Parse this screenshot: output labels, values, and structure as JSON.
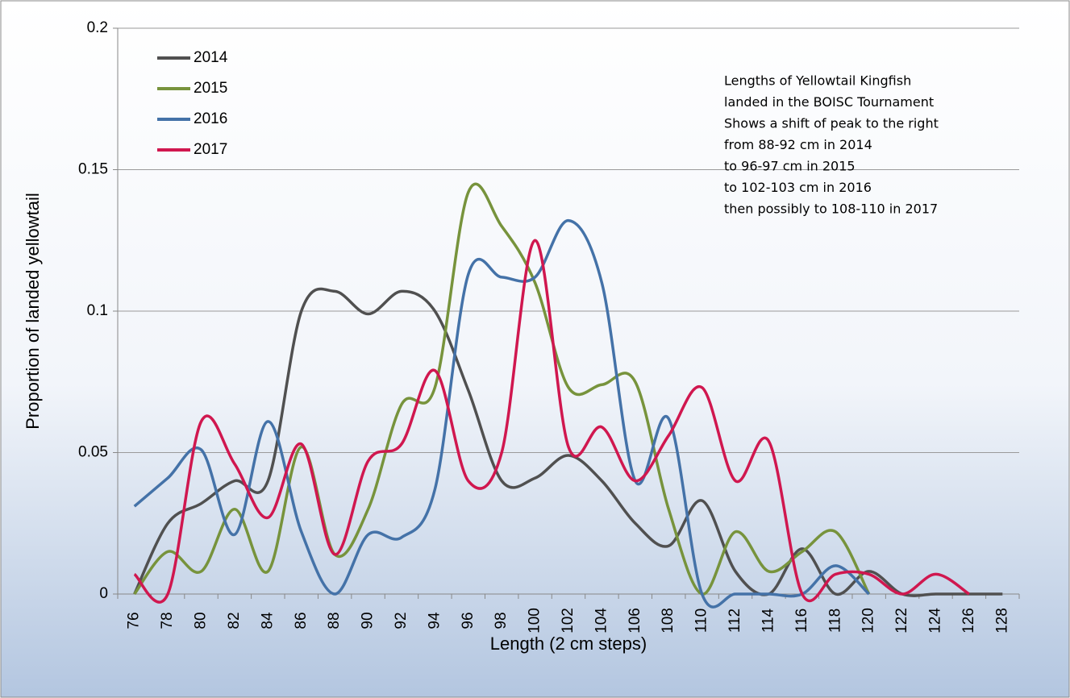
{
  "chart_data": {
    "type": "line",
    "x_label": "Length  (2 cm steps)",
    "y_label": "Proportion of landed  yellowtail",
    "annotation": [
      "Lengths of Yellowtail Kingfish",
      "landed in the BOISC Tournament",
      "Shows a shift of peak to the right",
      "from 88-92 cm  in 2014",
      "to  96-97 cm in 2015",
      "to 102-103 cm in 2016",
      "then possibly to 108-110 in 2017"
    ],
    "categories": [
      "76",
      "78",
      "80",
      "82",
      "84",
      "86",
      "88",
      "90",
      "92",
      "94",
      "96",
      "98",
      "100",
      "102",
      "104",
      "106",
      "108",
      "110",
      "112",
      "114",
      "116",
      "118",
      "120",
      "122",
      "124",
      "126",
      "128"
    ],
    "series": [
      {
        "name": "2014",
        "color": "#505050",
        "values": [
          0,
          0.025,
          0.032,
          0.04,
          0.04,
          0.1,
          0.107,
          0.099,
          0.107,
          0.1,
          0.072,
          0.04,
          0.041,
          0.049,
          0.04,
          0.025,
          0.017,
          0.033,
          0.008,
          0,
          0.016,
          0,
          0.008,
          0,
          0,
          0,
          0
        ]
      },
      {
        "name": "2015",
        "color": "#77933c",
        "values": [
          0,
          0.015,
          0.008,
          0.03,
          0.008,
          0.052,
          0.014,
          0.03,
          0.067,
          0.073,
          0.142,
          0.13,
          0.11,
          0.073,
          0.074,
          0.075,
          0.03,
          0,
          0.022,
          0.008,
          0.015,
          0.022,
          0,
          null,
          null,
          null,
          null
        ]
      },
      {
        "name": "2016",
        "color": "#4472a8",
        "values": [
          0.031,
          0.041,
          0.051,
          0.021,
          0.061,
          0.022,
          0,
          0.021,
          0.02,
          0.037,
          0.113,
          0.112,
          0.112,
          0.132,
          0.11,
          0.04,
          0.062,
          0,
          0,
          0,
          0,
          0.01,
          0,
          null,
          null,
          null,
          null
        ]
      },
      {
        "name": "2017",
        "color": "#d0174f",
        "values": [
          0.007,
          0,
          0.061,
          0.046,
          0.027,
          0.053,
          0.014,
          0.047,
          0.053,
          0.079,
          0.04,
          0.05,
          0.125,
          0.052,
          0.059,
          0.04,
          0.056,
          0.073,
          0.04,
          0.054,
          0,
          0.007,
          0.007,
          0,
          0.007,
          0,
          null
        ]
      }
    ],
    "ylim": [
      0,
      0.2
    ],
    "yticks": [
      0,
      0.05,
      0.1,
      0.15,
      0.2
    ],
    "grid": true,
    "legend": "top-left"
  }
}
